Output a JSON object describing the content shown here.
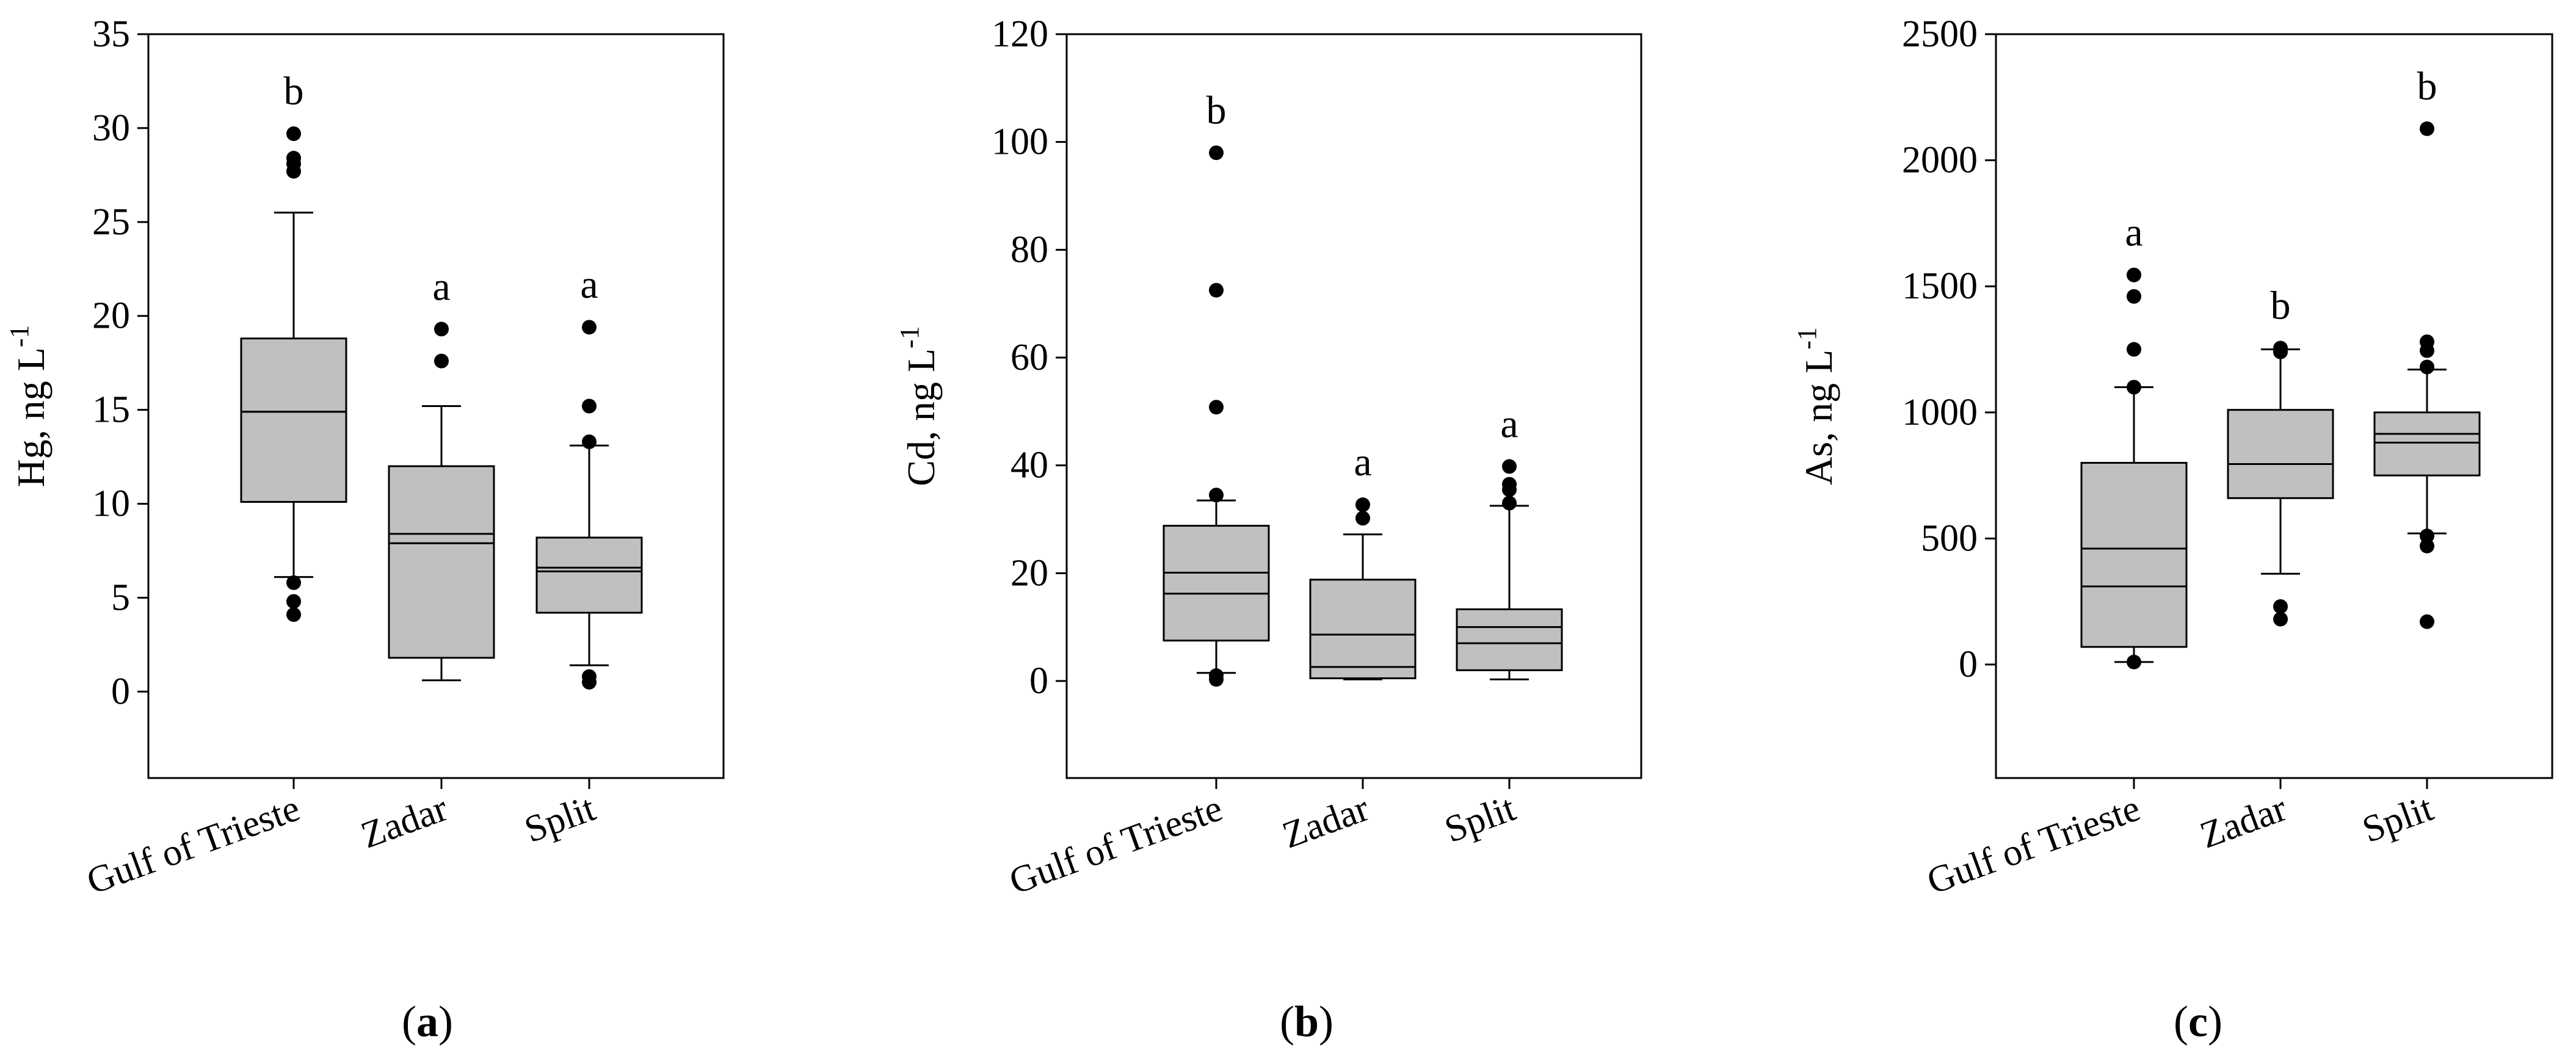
{
  "chart_data": [
    {
      "type": "box",
      "panel_label": "a",
      "ylabel": "Hg, ng L",
      "ylabel_sup": "-1",
      "ylim": [
        -4.6,
        35
      ],
      "yticks": [
        0,
        5,
        10,
        15,
        20,
        25,
        30,
        35
      ],
      "categories": [
        "Gulf of Trieste",
        "Zadar",
        "Split"
      ],
      "boxes": [
        {
          "whisker_low": 6.1,
          "q1": 10.1,
          "median": 14.9,
          "mean": 14.9,
          "q3": 18.8,
          "whisker_high": 25.5,
          "outliers": [
            4.1,
            4.8,
            5.8,
            27.7,
            28.1,
            28.4,
            29.7
          ],
          "letter": "b"
        },
        {
          "whisker_low": 0.6,
          "q1": 1.8,
          "median": 7.9,
          "mean": 8.4,
          "q3": 12.0,
          "whisker_high": 15.2,
          "outliers": [
            17.6,
            19.3
          ],
          "letter": "a"
        },
        {
          "whisker_low": 1.4,
          "q1": 4.2,
          "median": 6.4,
          "mean": 6.6,
          "q3": 8.2,
          "whisker_high": 13.1,
          "outliers": [
            0.5,
            0.8,
            13.3,
            15.2,
            19.4
          ],
          "letter": "a"
        }
      ]
    },
    {
      "type": "box",
      "panel_label": "b",
      "ylabel": "Cd, ng L",
      "ylabel_sup": "-1",
      "ylim": [
        -18,
        120
      ],
      "yticks": [
        0,
        20,
        40,
        60,
        80,
        100,
        120
      ],
      "categories": [
        "Gulf of Trieste",
        "Zadar",
        "Split"
      ],
      "boxes": [
        {
          "whisker_low": 1.5,
          "q1": 7.5,
          "median": 16.2,
          "mean": 20.1,
          "q3": 28.8,
          "whisker_high": 33.5,
          "outliers": [
            0.3,
            1.0,
            34.5,
            50.8,
            72.5,
            98.0
          ],
          "letter": "b"
        },
        {
          "whisker_low": 0.3,
          "q1": 0.5,
          "median": 2.6,
          "mean": 8.6,
          "q3": 18.8,
          "whisker_high": 27.2,
          "outliers": [
            30.2,
            32.7
          ],
          "letter": "a"
        },
        {
          "whisker_low": 0.3,
          "q1": 2.0,
          "median": 7.0,
          "mean": 10.0,
          "q3": 13.3,
          "whisker_high": 32.5,
          "outliers": [
            33.0,
            35.5,
            36.5,
            39.8
          ],
          "letter": "a"
        }
      ]
    },
    {
      "type": "box",
      "panel_label": "c",
      "ylabel": "As, ng L",
      "ylabel_sup": "-1",
      "ylim": [
        -450,
        2500
      ],
      "yticks": [
        0,
        500,
        1000,
        1500,
        2000,
        2500
      ],
      "categories": [
        "Gulf of Trieste",
        "Zadar",
        "Split"
      ],
      "boxes": [
        {
          "whisker_low": 10,
          "q1": 70,
          "median": 310,
          "mean": 460,
          "q3": 800,
          "whisker_high": 1100,
          "outliers": [
            10,
            1100,
            1250,
            1460,
            1545
          ],
          "letter": "a"
        },
        {
          "whisker_low": 360,
          "q1": 660,
          "median": 795,
          "mean": 795,
          "q3": 1010,
          "whisker_high": 1250,
          "outliers": [
            180,
            230,
            1240,
            1255
          ],
          "letter": "b"
        },
        {
          "whisker_low": 520,
          "q1": 750,
          "median": 880,
          "mean": 915,
          "q3": 1000,
          "whisker_high": 1170,
          "outliers": [
            170,
            470,
            510,
            1180,
            1245,
            1280,
            2125
          ],
          "letter": "b"
        }
      ]
    }
  ]
}
